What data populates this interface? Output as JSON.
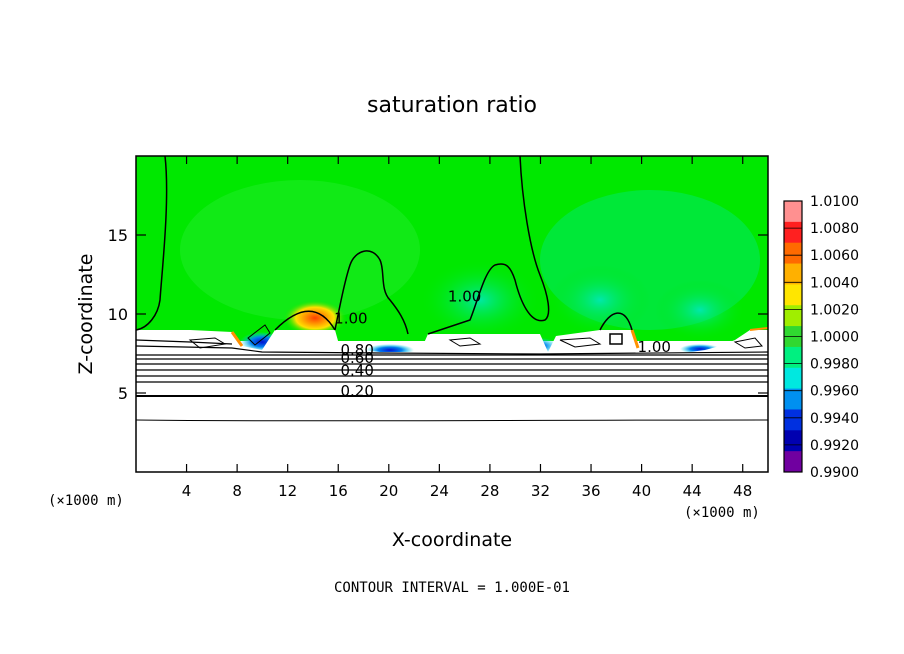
{
  "chart_data": {
    "type": "contour",
    "title": "saturation ratio",
    "xlabel": "X-coordinate",
    "ylabel": "Z-coordinate",
    "x_unit_left": "(×1000 m)",
    "x_unit_right": "(×1000 m)",
    "footer": "CONTOUR INTERVAL = 1.000E-01",
    "xlim": [
      0,
      50
    ],
    "ylim": [
      0,
      20
    ],
    "x_ticks": [
      4,
      8,
      12,
      16,
      20,
      24,
      28,
      32,
      36,
      40,
      44,
      48
    ],
    "x_tick_labels": [
      "4",
      "8",
      "12",
      "16",
      "20",
      "24",
      "28",
      "32",
      "36",
      "40",
      "44",
      "48"
    ],
    "y_ticks": [
      5,
      10,
      15
    ],
    "y_tick_labels": [
      "5",
      "10",
      "15"
    ],
    "contour_labels": [
      {
        "text": "1.00",
        "x": 26,
        "y": 10.8
      },
      {
        "text": "1.00",
        "x": 17,
        "y": 9.4
      },
      {
        "text": "1.00",
        "x": 41,
        "y": 7.6
      },
      {
        "text": "0.80",
        "x": 17.5,
        "y": 7.4
      },
      {
        "text": "0.60",
        "x": 17.5,
        "y": 6.9
      },
      {
        "text": "0.40",
        "x": 17.5,
        "y": 6.1
      },
      {
        "text": "0.20",
        "x": 17.5,
        "y": 4.8
      }
    ],
    "colorbar": {
      "min": 0.99,
      "max": 1.01,
      "levels": [
        "1.0100",
        "1.0080",
        "1.0060",
        "1.0040",
        "1.0020",
        "1.0000",
        "0.9980",
        "0.9960",
        "0.9940",
        "0.9920",
        "0.9900"
      ],
      "colors": [
        "#ff9090",
        "#ff2020",
        "#ff6a00",
        "#ffb000",
        "#ffe600",
        "#a0ee00",
        "#30d830",
        "#00f080",
        "#00e8e0",
        "#0090f0",
        "#0030e0",
        "#0000b0",
        "#7000a0"
      ]
    }
  }
}
